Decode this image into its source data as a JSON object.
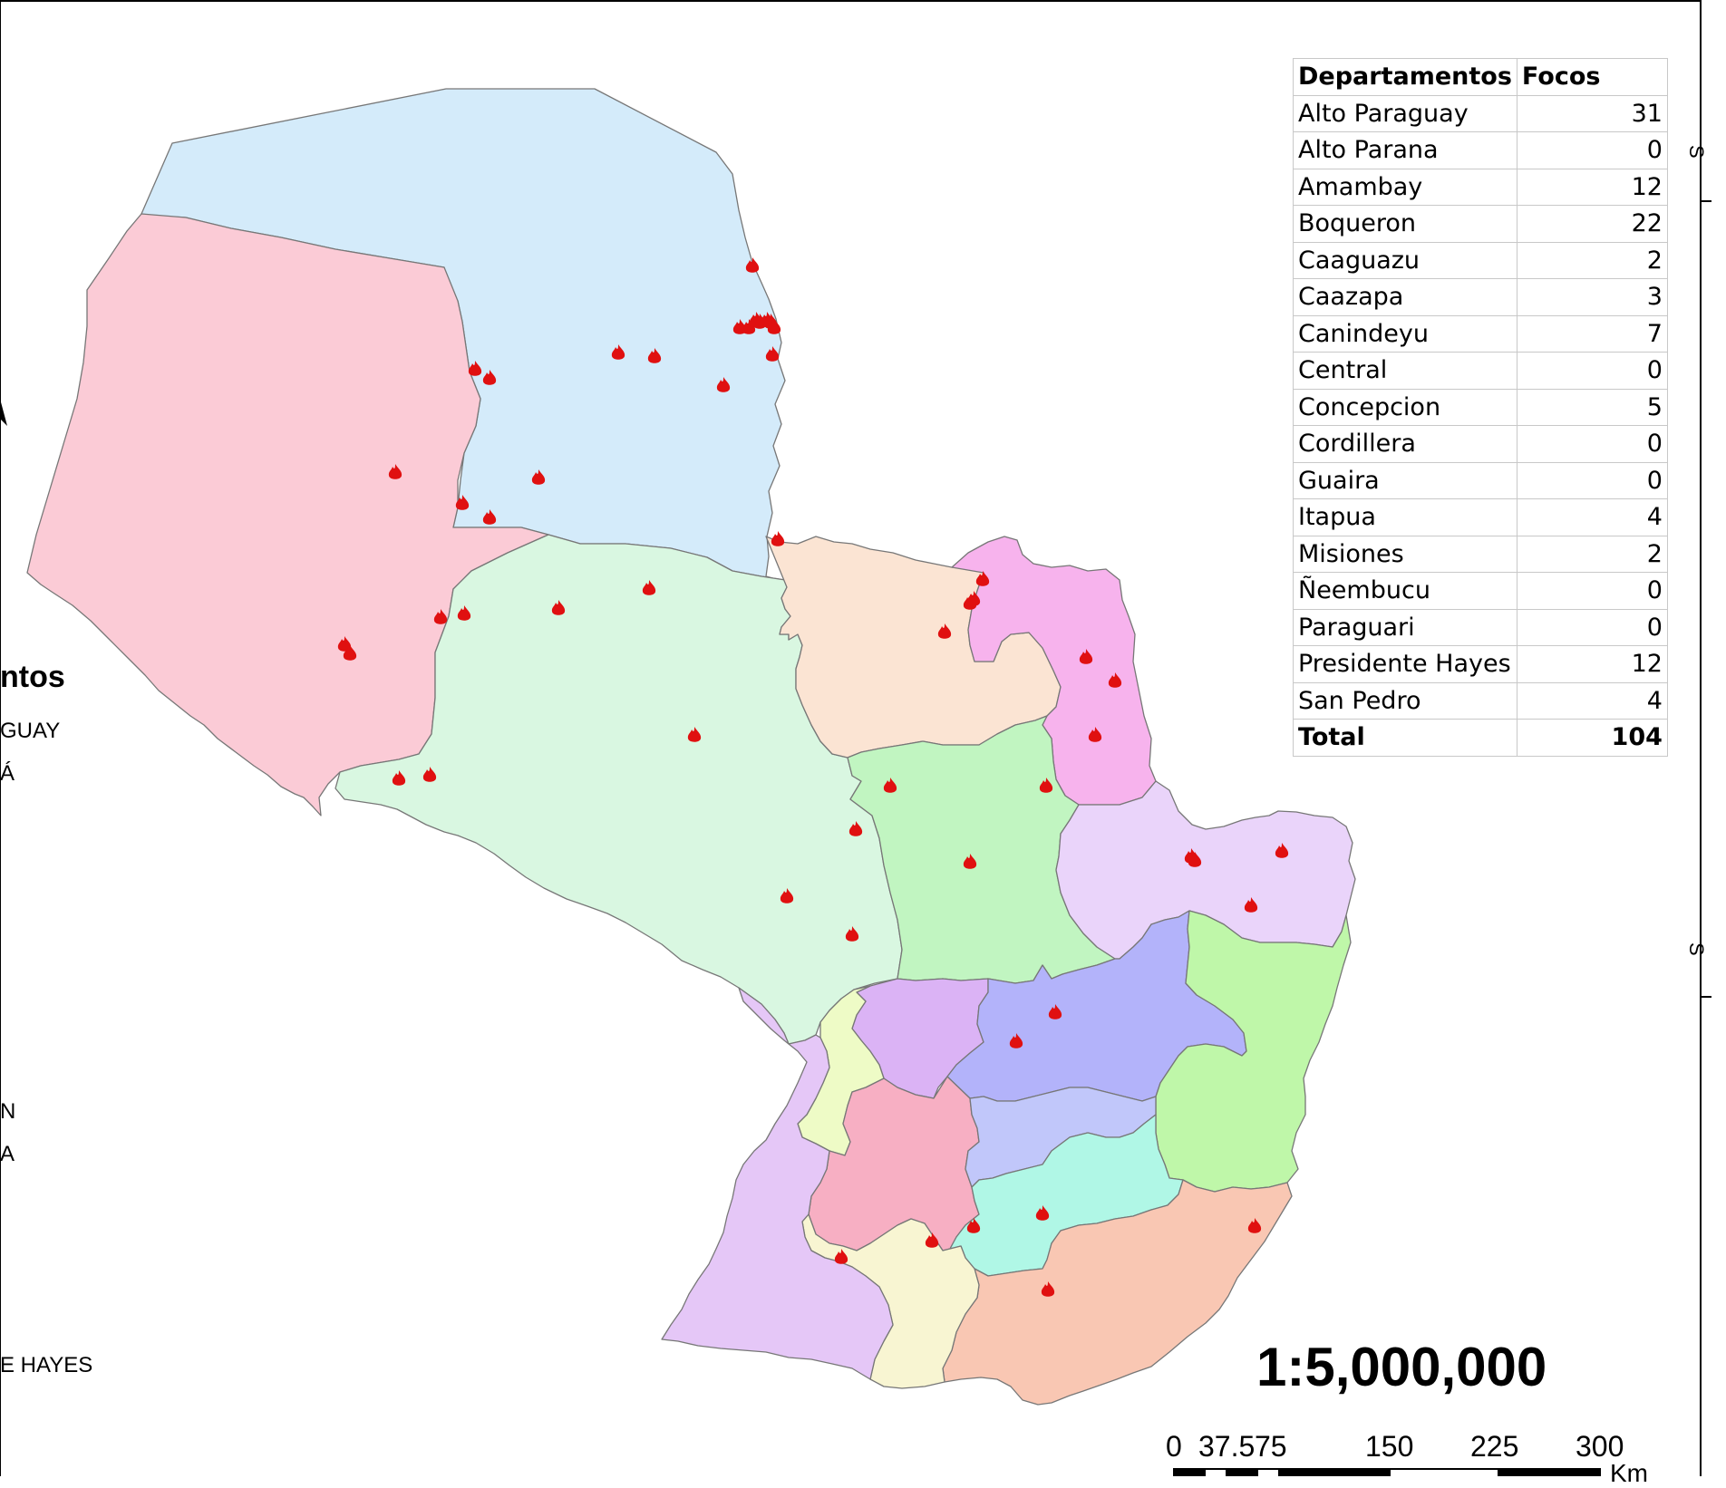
{
  "map": {
    "legend": {
      "title": "ntos",
      "items": [
        "GUAY",
        "Á",
        "N",
        "A",
        "E HAYES"
      ]
    },
    "departments": [
      {
        "name": "Alto Paraguay",
        "color": "#d4ebfa"
      },
      {
        "name": "Boqueron",
        "color": "#fbcbd6"
      },
      {
        "name": "Presidente Hayes",
        "color": "#d9f7e1"
      },
      {
        "name": "Concepcion",
        "color": "#fbe4d3"
      },
      {
        "name": "Amambay",
        "color": "#f7b3ed"
      },
      {
        "name": "San Pedro",
        "color": "#c1f5c1"
      },
      {
        "name": "Canindeyu",
        "color": "#ead4fa"
      },
      {
        "name": "Cordillera",
        "color": "#dbb3f5"
      },
      {
        "name": "Caaguazu",
        "color": "#b3b3fa"
      },
      {
        "name": "Alto Parana",
        "color": "#bff7a9"
      },
      {
        "name": "Central",
        "color": "#eefbc6"
      },
      {
        "name": "Paraguari",
        "color": "#f7afc3"
      },
      {
        "name": "Guaira",
        "color": "#c1c7fa"
      },
      {
        "name": "Caazapa",
        "color": "#b0f7e6"
      },
      {
        "name": "Itapua",
        "color": "#f9c7b3"
      },
      {
        "name": "Misiones",
        "color": "#f8f5d2"
      },
      {
        "name": "Ñeembucu",
        "color": "#e5c7f7"
      }
    ],
    "fire_icon": "fire-icon",
    "fire_color": "#e01010"
  },
  "table": {
    "header": {
      "name": "Departamentos",
      "count": "Focos"
    },
    "rows": [
      {
        "name": "Alto Paraguay",
        "count": "31"
      },
      {
        "name": "Alto Parana",
        "count": "0"
      },
      {
        "name": "Amambay",
        "count": "12"
      },
      {
        "name": "Boqueron",
        "count": "22"
      },
      {
        "name": "Caaguazu",
        "count": "2"
      },
      {
        "name": "Caazapa",
        "count": "3"
      },
      {
        "name": "Canindeyu",
        "count": "7"
      },
      {
        "name": "Central",
        "count": "0"
      },
      {
        "name": "Concepcion",
        "count": "5"
      },
      {
        "name": "Cordillera",
        "count": "0"
      },
      {
        "name": "Guaira",
        "count": "0"
      },
      {
        "name": "Itapua",
        "count": "4"
      },
      {
        "name": "Misiones",
        "count": "2"
      },
      {
        "name": "Ñeembucu",
        "count": "0"
      },
      {
        "name": "Paraguari",
        "count": "0"
      },
      {
        "name": "Presidente Hayes",
        "count": "12"
      },
      {
        "name": "San Pedro",
        "count": "4"
      }
    ],
    "total": {
      "name": "Total",
      "count": "104"
    }
  },
  "scale": {
    "ratio": "1:5,000,000",
    "ticks": [
      "0",
      "37.5",
      "75",
      "150",
      "225",
      "300"
    ],
    "unit": "Km"
  },
  "coords": [
    "S",
    "S"
  ]
}
